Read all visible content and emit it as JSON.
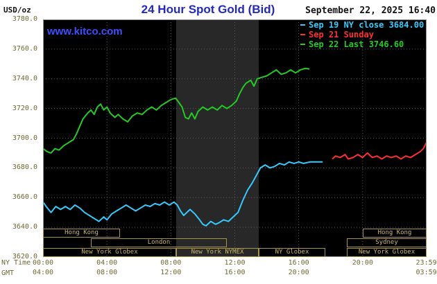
{
  "header": {
    "unit_label": "USD/oz",
    "title": "24 Hour Spot Gold (Bid)",
    "datetime": "September 22, 2025 16:40",
    "watermark": "www.kitco.com"
  },
  "legend": [
    {
      "label": "Sep 19 NY close 3684.00",
      "color": "#33ccff"
    },
    {
      "label": "Sep 21 Sunday",
      "color": "#ff3030"
    },
    {
      "label": "Sep 22 Last 3746.60",
      "color": "#22cc22"
    }
  ],
  "axes": {
    "ny_label": "NY Time",
    "gmt_label": "GMT",
    "y_ticks": [
      3780,
      3760,
      3740,
      3720,
      3700,
      3680,
      3660,
      3640,
      3620
    ],
    "x_ticks": [
      {
        "h": 0,
        "ny": "00:00",
        "gmt": "04:00"
      },
      {
        "h": 4,
        "ny": "04:00",
        "gmt": "08:00"
      },
      {
        "h": 8,
        "ny": "08:00",
        "gmt": "12:00"
      },
      {
        "h": 12,
        "ny": "12:00",
        "gmt": "16:00"
      },
      {
        "h": 16,
        "ny": "16:00",
        "gmt": "20:00"
      },
      {
        "h": 20,
        "ny": "20:00",
        "gmt": ""
      },
      {
        "h": 23.983,
        "ny": "23:59",
        "gmt": "03:59"
      }
    ]
  },
  "sessions": {
    "rows": [
      [
        {
          "label": "Hong Kong",
          "from": 0,
          "to": 4.8
        },
        {
          "label": "Hong Kong",
          "from": 20,
          "to": 24
        }
      ],
      [
        {
          "label": "London",
          "from": 3,
          "to": 11.5
        },
        {
          "label": "Sydney",
          "from": 19,
          "to": 24
        }
      ],
      [
        {
          "label": "New York Globex",
          "from": 0,
          "to": 8.33
        },
        {
          "label": "New York NYMEX",
          "from": 8.33,
          "to": 13.5
        },
        {
          "label": "NY Globex",
          "from": 13.5,
          "to": 17.67
        },
        {
          "label": "New York Globex",
          "from": 19,
          "to": 24
        }
      ]
    ]
  },
  "colors": {
    "background": "#ffffff",
    "plot_bg": "#000000",
    "band": "#282828",
    "grid": "#5a5a5a",
    "plot_border": "#909090",
    "axis_text": "#6e6833",
    "title_color": "#2228c8",
    "kitco_link": "#3c50ff",
    "date_text": "#111111",
    "session_tan": "#c8b86a",
    "session_border": "#a8934a"
  },
  "chart_data": {
    "type": "line",
    "title": "24 Hour Spot Gold (Bid)",
    "ylabel": "USD/oz",
    "xlabel": "NY Time",
    "x_range_hours": [
      0,
      24
    ],
    "ylim": [
      3620,
      3780
    ],
    "grid": true,
    "y_gridlines": [
      3640,
      3660,
      3680,
      3700,
      3720,
      3740,
      3760
    ],
    "x_gridlines_hours": [
      4,
      8,
      12,
      16,
      20
    ],
    "session_band": {
      "from_hour": 8.33,
      "to_hour": 13.5
    },
    "series": [
      {
        "name": "Sep 19 NY close 3684.00",
        "color": "#33ccff",
        "points": [
          [
            0,
            3657
          ],
          [
            0.2,
            3654
          ],
          [
            0.5,
            3650
          ],
          [
            0.8,
            3654
          ],
          [
            1.1,
            3652
          ],
          [
            1.4,
            3654
          ],
          [
            1.7,
            3652
          ],
          [
            2,
            3655
          ],
          [
            2.3,
            3653
          ],
          [
            2.6,
            3650
          ],
          [
            2.9,
            3648
          ],
          [
            3.2,
            3646
          ],
          [
            3.5,
            3644
          ],
          [
            3.8,
            3647
          ],
          [
            4,
            3645
          ],
          [
            4.3,
            3649
          ],
          [
            4.6,
            3651
          ],
          [
            4.9,
            3653
          ],
          [
            5.2,
            3655
          ],
          [
            5.5,
            3653
          ],
          [
            5.8,
            3651
          ],
          [
            6.1,
            3653
          ],
          [
            6.4,
            3655
          ],
          [
            6.7,
            3654
          ],
          [
            7,
            3656
          ],
          [
            7.3,
            3655
          ],
          [
            7.6,
            3657
          ],
          [
            7.9,
            3655
          ],
          [
            8.2,
            3657
          ],
          [
            8.4,
            3655
          ],
          [
            8.6,
            3651
          ],
          [
            8.8,
            3648
          ],
          [
            9,
            3650
          ],
          [
            9.2,
            3652
          ],
          [
            9.5,
            3649
          ],
          [
            9.8,
            3645
          ],
          [
            10,
            3642
          ],
          [
            10.2,
            3641
          ],
          [
            10.5,
            3644
          ],
          [
            10.8,
            3642
          ],
          [
            11,
            3643
          ],
          [
            11.3,
            3645
          ],
          [
            11.6,
            3644
          ],
          [
            11.9,
            3647
          ],
          [
            12.2,
            3650
          ],
          [
            12.5,
            3658
          ],
          [
            12.8,
            3665
          ],
          [
            13.1,
            3670
          ],
          [
            13.4,
            3676
          ],
          [
            13.6,
            3680
          ],
          [
            13.9,
            3682
          ],
          [
            14.2,
            3680
          ],
          [
            14.5,
            3681
          ],
          [
            14.8,
            3683
          ],
          [
            15.1,
            3682
          ],
          [
            15.4,
            3684
          ],
          [
            15.7,
            3683
          ],
          [
            16,
            3684
          ],
          [
            16.3,
            3683
          ],
          [
            16.7,
            3684
          ],
          [
            17.1,
            3684
          ],
          [
            17.5,
            3684
          ]
        ]
      },
      {
        "name": "Sep 21 Sunday",
        "color": "#ff3030",
        "points": [
          [
            18.1,
            3686
          ],
          [
            18.3,
            3688
          ],
          [
            18.6,
            3687
          ],
          [
            18.9,
            3689
          ],
          [
            19.1,
            3686
          ],
          [
            19.4,
            3687
          ],
          [
            19.7,
            3689
          ],
          [
            20,
            3687
          ],
          [
            20.3,
            3690
          ],
          [
            20.6,
            3687
          ],
          [
            20.9,
            3688
          ],
          [
            21.2,
            3686
          ],
          [
            21.5,
            3688
          ],
          [
            21.8,
            3687
          ],
          [
            22.1,
            3688
          ],
          [
            22.4,
            3686
          ],
          [
            22.7,
            3688
          ],
          [
            23,
            3687
          ],
          [
            23.3,
            3689
          ],
          [
            23.6,
            3691
          ],
          [
            23.8,
            3693
          ],
          [
            23.98,
            3697
          ]
        ]
      },
      {
        "name": "Sep 22 Last 3746.60",
        "color": "#22cc22",
        "points": [
          [
            0,
            3693
          ],
          [
            0.25,
            3691
          ],
          [
            0.5,
            3690
          ],
          [
            0.75,
            3693
          ],
          [
            1,
            3692
          ],
          [
            1.3,
            3695
          ],
          [
            1.6,
            3697
          ],
          [
            1.9,
            3699
          ],
          [
            2.1,
            3703
          ],
          [
            2.3,
            3708
          ],
          [
            2.5,
            3713
          ],
          [
            2.8,
            3717
          ],
          [
            3,
            3719
          ],
          [
            3.2,
            3716
          ],
          [
            3.4,
            3721
          ],
          [
            3.6,
            3723
          ],
          [
            3.8,
            3719
          ],
          [
            4,
            3721
          ],
          [
            4.2,
            3717
          ],
          [
            4.5,
            3714
          ],
          [
            4.7,
            3716
          ],
          [
            5,
            3713
          ],
          [
            5.3,
            3711
          ],
          [
            5.6,
            3715
          ],
          [
            5.9,
            3717
          ],
          [
            6.2,
            3716
          ],
          [
            6.5,
            3719
          ],
          [
            6.8,
            3721
          ],
          [
            7.1,
            3719
          ],
          [
            7.4,
            3722
          ],
          [
            7.7,
            3724
          ],
          [
            8,
            3726
          ],
          [
            8.3,
            3727
          ],
          [
            8.5,
            3724
          ],
          [
            8.7,
            3721
          ],
          [
            8.9,
            3714
          ],
          [
            9.1,
            3713
          ],
          [
            9.3,
            3717
          ],
          [
            9.5,
            3713
          ],
          [
            9.7,
            3718
          ],
          [
            10,
            3721
          ],
          [
            10.3,
            3719
          ],
          [
            10.6,
            3721
          ],
          [
            10.9,
            3719
          ],
          [
            11.2,
            3722
          ],
          [
            11.5,
            3720
          ],
          [
            11.8,
            3722
          ],
          [
            12.1,
            3725
          ],
          [
            12.3,
            3730
          ],
          [
            12.5,
            3734
          ],
          [
            12.7,
            3737
          ],
          [
            13,
            3739
          ],
          [
            13.2,
            3735
          ],
          [
            13.4,
            3740
          ],
          [
            13.7,
            3741
          ],
          [
            14,
            3742
          ],
          [
            14.3,
            3744
          ],
          [
            14.6,
            3746
          ],
          [
            14.9,
            3743
          ],
          [
            15.2,
            3744
          ],
          [
            15.5,
            3746
          ],
          [
            15.8,
            3744
          ],
          [
            16.1,
            3746
          ],
          [
            16.4,
            3747
          ],
          [
            16.67,
            3746.6
          ]
        ]
      }
    ]
  }
}
